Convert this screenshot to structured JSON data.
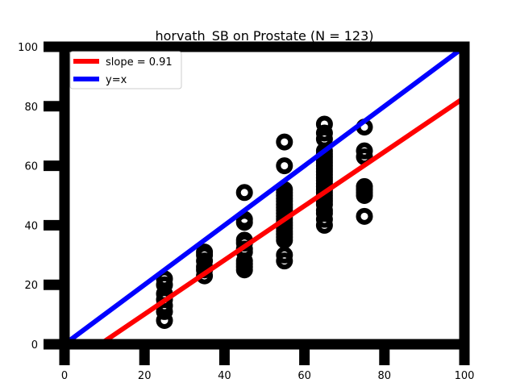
{
  "chart_data": {
    "type": "scatter",
    "title": "horvath_SB on Prostate (N = 123)",
    "xlabel": "",
    "ylabel": "",
    "xlim": [
      0,
      100
    ],
    "ylim": [
      0,
      100
    ],
    "x_ticks": [
      0,
      20,
      40,
      60,
      80,
      100
    ],
    "y_ticks": [
      0,
      20,
      40,
      60,
      80,
      100
    ],
    "grid": false,
    "legend_position": "top-left",
    "colors": {
      "fit": "#ff0000",
      "identity": "#0000ff",
      "points": "#000000",
      "frame": "#000000"
    },
    "series": [
      {
        "kind": "scatter",
        "points": [
          [
            25,
            8
          ],
          [
            25,
            11
          ],
          [
            25,
            13
          ],
          [
            25,
            15
          ],
          [
            25,
            17
          ],
          [
            25,
            20
          ],
          [
            25,
            22
          ],
          [
            35,
            23
          ],
          [
            35,
            25
          ],
          [
            35,
            26
          ],
          [
            35,
            28
          ],
          [
            35,
            30
          ],
          [
            35,
            31
          ],
          [
            45,
            25
          ],
          [
            45,
            26
          ],
          [
            45,
            27
          ],
          [
            45,
            28
          ],
          [
            45,
            31
          ],
          [
            45,
            32
          ],
          [
            45,
            34
          ],
          [
            45,
            35
          ],
          [
            45,
            41
          ],
          [
            45,
            42
          ],
          [
            45,
            51
          ],
          [
            55,
            28
          ],
          [
            55,
            30
          ],
          [
            55,
            35
          ],
          [
            55,
            36
          ],
          [
            55,
            37
          ],
          [
            55,
            38
          ],
          [
            55,
            39
          ],
          [
            55,
            40
          ],
          [
            55,
            41
          ],
          [
            55,
            42
          ],
          [
            55,
            43
          ],
          [
            55,
            44
          ],
          [
            55,
            45
          ],
          [
            55,
            46
          ],
          [
            55,
            47
          ],
          [
            55,
            48
          ],
          [
            55,
            49
          ],
          [
            55,
            50
          ],
          [
            55,
            51
          ],
          [
            55,
            52
          ],
          [
            55,
            60
          ],
          [
            55,
            68
          ],
          [
            65,
            40
          ],
          [
            65,
            42
          ],
          [
            65,
            44
          ],
          [
            65,
            45
          ],
          [
            65,
            47
          ],
          [
            65,
            48
          ],
          [
            65,
            49
          ],
          [
            65,
            50
          ],
          [
            65,
            51
          ],
          [
            65,
            52
          ],
          [
            65,
            53
          ],
          [
            65,
            54
          ],
          [
            65,
            55
          ],
          [
            65,
            56
          ],
          [
            65,
            57
          ],
          [
            65,
            58
          ],
          [
            65,
            59
          ],
          [
            65,
            60
          ],
          [
            65,
            61
          ],
          [
            65,
            62
          ],
          [
            65,
            63
          ],
          [
            65,
            64
          ],
          [
            65,
            65
          ],
          [
            65,
            69
          ],
          [
            65,
            71
          ],
          [
            65,
            74
          ],
          [
            75,
            43
          ],
          [
            75,
            50
          ],
          [
            75,
            51
          ],
          [
            75,
            52
          ],
          [
            75,
            53
          ],
          [
            75,
            63
          ],
          [
            75,
            65
          ],
          [
            75,
            73
          ]
        ]
      },
      {
        "kind": "line",
        "name": "slope = 0.91",
        "slope": 0.91,
        "intercept": -8.1,
        "color": "#ff0000"
      },
      {
        "kind": "line",
        "name": "y=x",
        "slope": 1,
        "intercept": 0,
        "color": "#0000ff"
      }
    ]
  }
}
